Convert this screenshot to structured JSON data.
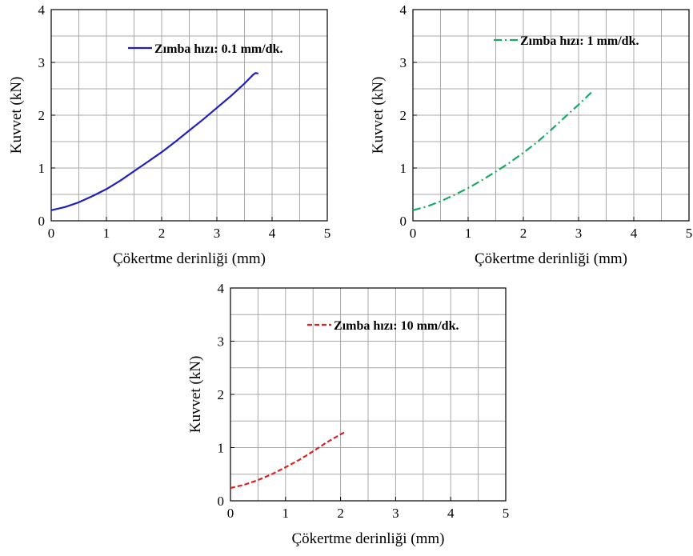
{
  "chart_data": [
    {
      "type": "line",
      "xlabel": "Çökertme derinliği (mm)",
      "ylabel": "Kuvvet (kN)",
      "xlim": [
        0,
        5
      ],
      "ylim": [
        0,
        4
      ],
      "xticks": [
        "0",
        "1",
        "2",
        "3",
        "4",
        "5"
      ],
      "yticks": [
        "0",
        "1",
        "2",
        "3",
        "4"
      ],
      "grid": true,
      "legend_position": "top-right",
      "series": [
        {
          "name": "Zımba hızı: 0.1 mm/dk.",
          "color": "#1f1fbf",
          "style": "solid",
          "x": [
            0,
            0.25,
            0.5,
            0.75,
            1.0,
            1.25,
            1.5,
            1.75,
            2.0,
            2.25,
            2.5,
            2.75,
            3.0,
            3.25,
            3.5,
            3.65,
            3.7,
            3.75
          ],
          "y": [
            0.2,
            0.26,
            0.35,
            0.47,
            0.6,
            0.76,
            0.94,
            1.12,
            1.3,
            1.5,
            1.71,
            1.92,
            2.14,
            2.36,
            2.6,
            2.76,
            2.8,
            2.79
          ]
        }
      ]
    },
    {
      "type": "line",
      "xlabel": "Çökertme derinliği (mm)",
      "ylabel": "Kuvvet (kN)",
      "xlim": [
        0,
        5
      ],
      "ylim": [
        0,
        4
      ],
      "xticks": [
        "0",
        "1",
        "2",
        "3",
        "4",
        "5"
      ],
      "yticks": [
        "0",
        "1",
        "2",
        "3",
        "4"
      ],
      "grid": true,
      "legend_position": "top-right",
      "series": [
        {
          "name": "Zımba hızı: 1 mm/dk.",
          "color": "#1aa867",
          "style": "dash-dot",
          "x": [
            0,
            0.25,
            0.5,
            0.75,
            1.0,
            1.25,
            1.5,
            1.75,
            2.0,
            2.25,
            2.5,
            2.75,
            3.0,
            3.25
          ],
          "y": [
            0.2,
            0.27,
            0.37,
            0.49,
            0.62,
            0.77,
            0.93,
            1.1,
            1.29,
            1.49,
            1.72,
            1.96,
            2.2,
            2.45
          ]
        }
      ]
    },
    {
      "type": "line",
      "xlabel": "Çökertme derinliği (mm)",
      "ylabel": "Kuvvet (kN)",
      "xlim": [
        0,
        5
      ],
      "ylim": [
        0,
        4
      ],
      "xticks": [
        "0",
        "1",
        "2",
        "3",
        "4",
        "5"
      ],
      "yticks": [
        "0",
        "1",
        "2",
        "3",
        "4"
      ],
      "grid": true,
      "legend_position": "top-right",
      "series": [
        {
          "name": "Zımba hızı: 10 mm/dk.",
          "color": "#e02020",
          "style": "dashed",
          "x": [
            0,
            0.25,
            0.5,
            0.75,
            1.0,
            1.25,
            1.5,
            1.75,
            2.0,
            2.1
          ],
          "y": [
            0.24,
            0.3,
            0.39,
            0.5,
            0.63,
            0.77,
            0.93,
            1.1,
            1.25,
            1.3
          ]
        }
      ]
    }
  ]
}
